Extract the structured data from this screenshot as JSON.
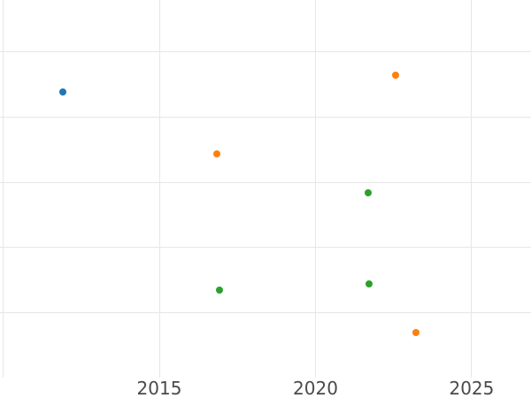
{
  "chart_data": {
    "type": "scatter",
    "title": "",
    "xlabel": "",
    "ylabel": "",
    "x_tick_labels": [
      "2015",
      "2020",
      "2025"
    ],
    "x_ticks": [
      2015,
      2020,
      2025
    ],
    "x_gridlines": [
      2010,
      2015,
      2020,
      2025
    ],
    "x_range": [
      2009.9,
      2026.9
    ],
    "y_gridlines": [
      1,
      2,
      3,
      4,
      5
    ],
    "y_range": [
      0,
      5.8
    ],
    "grid": true,
    "legend_position": "none",
    "marker_size_px": 8,
    "series": [
      {
        "name": "blue-series",
        "color": "#1f77b4",
        "points": [
          {
            "x": 2011.91,
            "y": 4.39
          }
        ]
      },
      {
        "name": "orange-series",
        "color": "#ff7f0e",
        "points": [
          {
            "x": 2016.85,
            "y": 3.44
          },
          {
            "x": 2022.57,
            "y": 4.64
          },
          {
            "x": 2023.22,
            "y": 0.69
          }
        ]
      },
      {
        "name": "green-series",
        "color": "#2ca02c",
        "points": [
          {
            "x": 2016.92,
            "y": 1.35
          },
          {
            "x": 2021.69,
            "y": 2.84
          },
          {
            "x": 2021.72,
            "y": 1.44
          }
        ]
      }
    ]
  },
  "colors": {
    "background": "#ffffff",
    "gridline": "#e6e6e6",
    "tick_label": "#4a4a4a"
  }
}
